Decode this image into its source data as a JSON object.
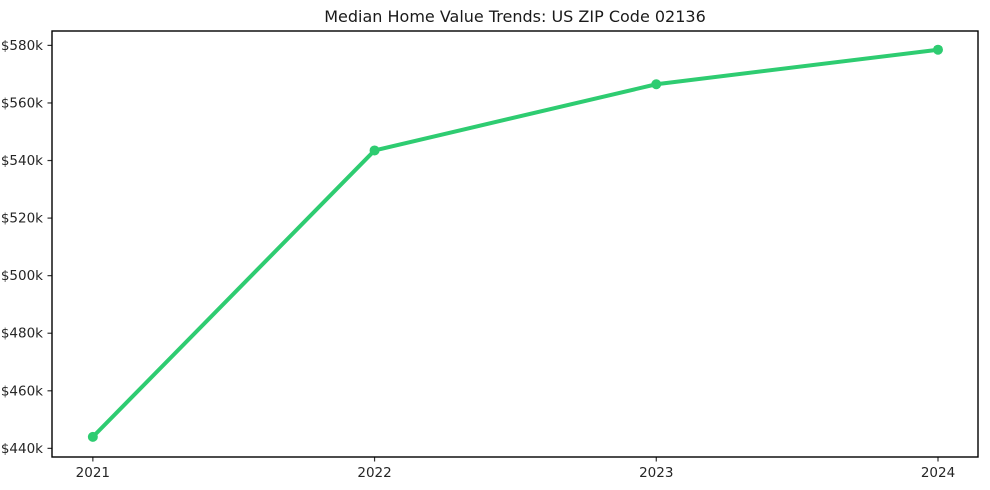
{
  "chart_data": {
    "type": "line",
    "title": "Median Home Value Trends: US ZIP Code 02136",
    "xlabel": "",
    "ylabel": "",
    "categories": [
      2021,
      2022,
      2023,
      2024
    ],
    "series": [
      {
        "name": "Median Home Value",
        "values": [
          444000,
          543500,
          566500,
          578500
        ],
        "color": "#2ecc71",
        "marker": "circle",
        "line_width": 4,
        "marker_radius": 5
      }
    ],
    "yticks": [
      {
        "value": 440000,
        "label": "$440k"
      },
      {
        "value": 460000,
        "label": "$460k"
      },
      {
        "value": 480000,
        "label": "$480k"
      },
      {
        "value": 500000,
        "label": "$500k"
      },
      {
        "value": 520000,
        "label": "$520k"
      },
      {
        "value": 540000,
        "label": "$540k"
      },
      {
        "value": 560000,
        "label": "$560k"
      },
      {
        "value": 580000,
        "label": "$580k"
      }
    ],
    "ylim": [
      437000,
      585000
    ],
    "xlim_index": [
      -0.145,
      3.142
    ],
    "grid": false,
    "legend": "none",
    "frame_color": "#000000",
    "tick_color": "#333333"
  }
}
